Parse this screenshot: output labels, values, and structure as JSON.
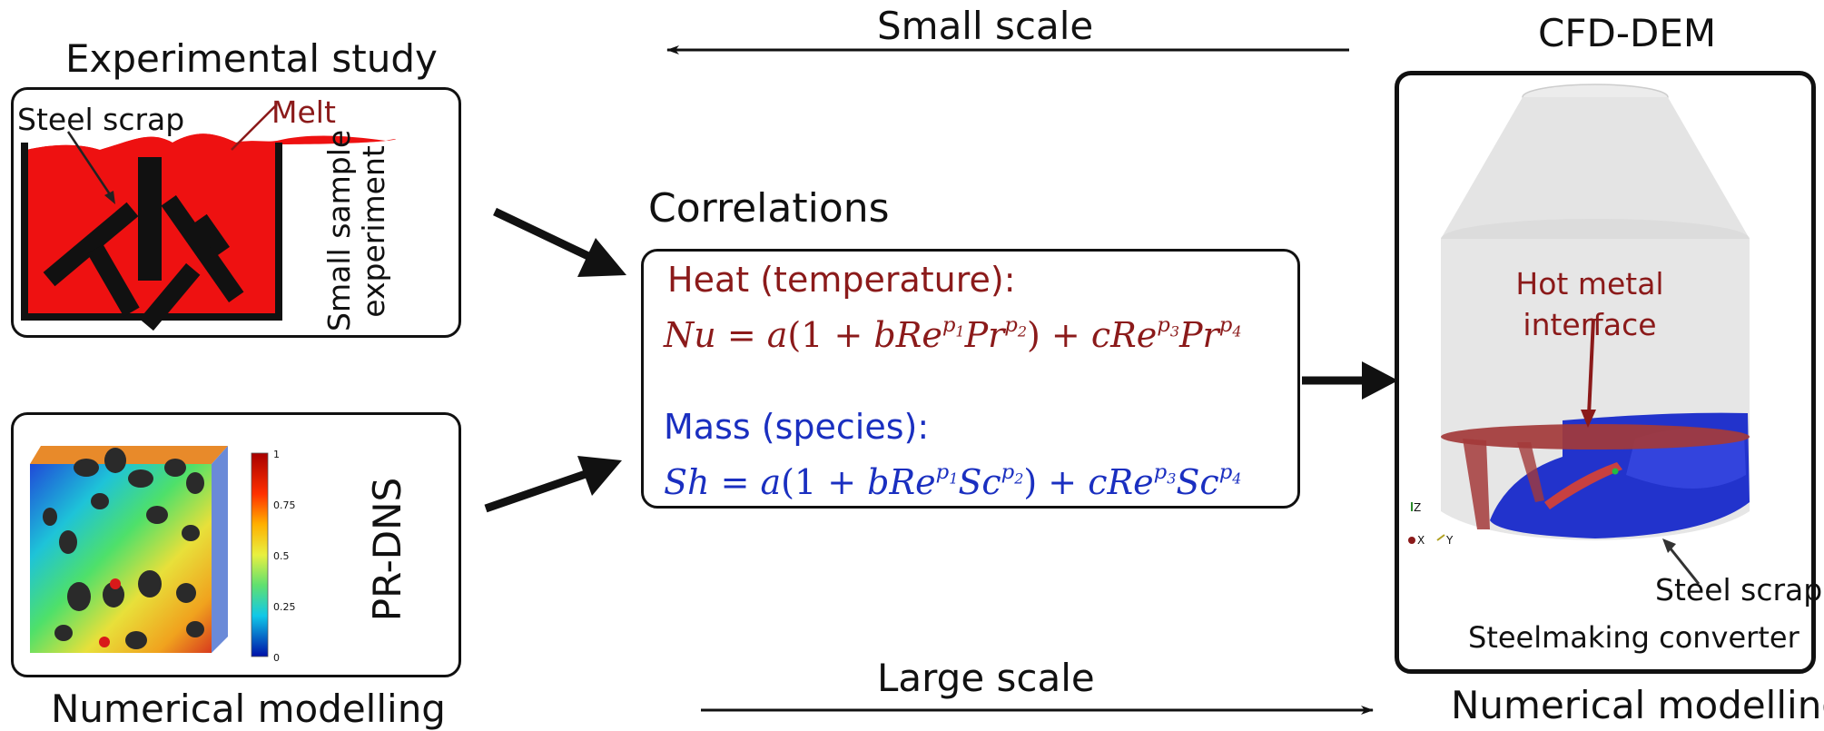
{
  "left": {
    "experimental_title": "Experimental study",
    "steel_scrap_label": "Steel scrap",
    "melt_label": "Melt",
    "small_sample_line1": "Small sample",
    "small_sample_line2": "experiment",
    "prdns_label": "PR-DNS",
    "colorbar_ticks": [
      "1",
      "0.75",
      "0.5",
      "0.25",
      "0"
    ],
    "numerical_modelling_label": "Numerical modelling"
  },
  "center": {
    "small_scale": "Small scale",
    "large_scale": "Large scale",
    "correlations_title": "Correlations",
    "heat_title": "Heat (temperature):",
    "mass_title": "Mass (species):",
    "heat_lhs": "Nu",
    "mass_lhs": "Sh",
    "heat_prandtl": "Pr",
    "mass_schmidt": "Sc"
  },
  "right": {
    "cfd_dem_title": "CFD-DEM",
    "hot_metal_line1": "Hot metal",
    "hot_metal_line2": "interface",
    "steel_scrap_label": "Steel scrap",
    "converter_label": "Steelmaking converter",
    "numerical_modelling_label": "Numerical modelling",
    "axis_z": "Z",
    "axis_x": "X",
    "axis_y": "Y"
  },
  "colors": {
    "heat": "#8b1a1a",
    "mass": "#1a2fc0",
    "melt": "#ee1111",
    "converter_fill": "#e6e6e6",
    "steel_blue": "#2233cc",
    "interface_red": "#a33a3a"
  }
}
